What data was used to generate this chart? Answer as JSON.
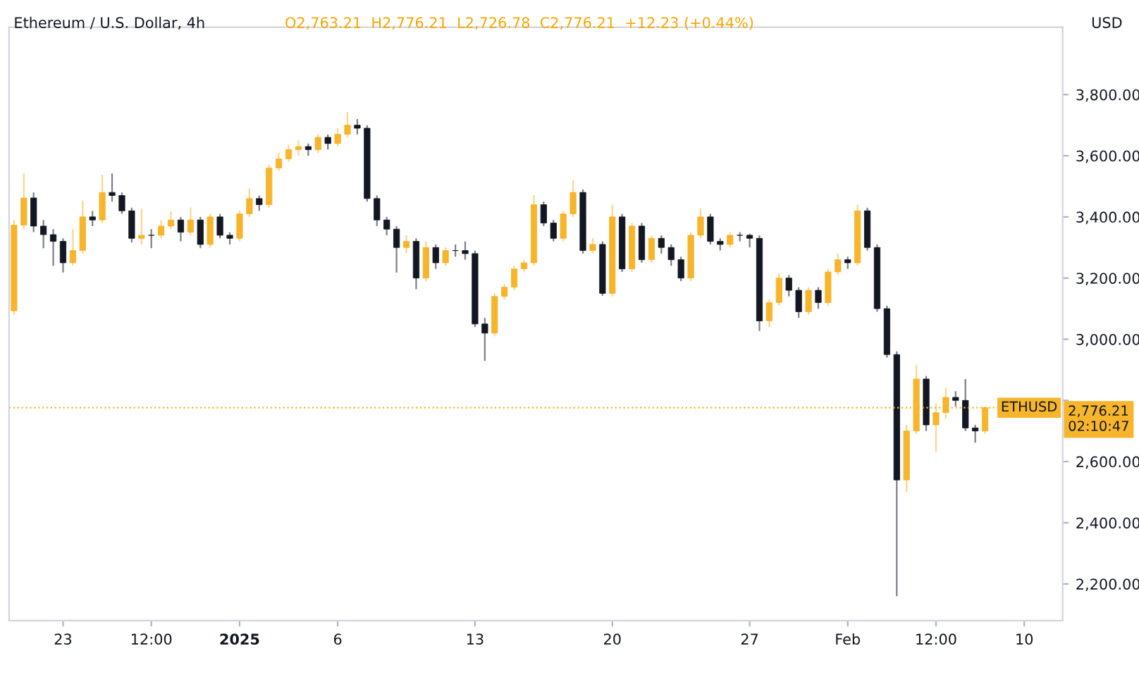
{
  "chart_data": {
    "type": "candlestick",
    "title": "Ethereum / U.S. Dollar, 4h",
    "subtitle": "O2,763.21  H2,776.21  L2,726.78  C2,776.21  +12.23 (+0.44%)",
    "ylabel": "USD",
    "x": [
      "2024-12-20T12:00",
      "2024-12-21T00:00",
      "2024-12-21T12:00",
      "2024-12-22T00:00",
      "2024-12-22T12:00",
      "2024-12-23T00:00",
      "2024-12-23T12:00",
      "2024-12-24T00:00",
      "2024-12-24T12:00",
      "2024-12-25T00:00",
      "2024-12-25T12:00",
      "2024-12-26T00:00",
      "2024-12-26T12:00",
      "2024-12-27T00:00",
      "2024-12-27T12:00",
      "2024-12-28T00:00",
      "2024-12-28T12:00",
      "2024-12-29T00:00",
      "2024-12-29T12:00",
      "2024-12-30T00:00",
      "2024-12-30T12:00",
      "2024-12-31T00:00",
      "2024-12-31T12:00",
      "2025-01-01T00:00",
      "2025-01-01T12:00",
      "2025-01-02T00:00",
      "2025-01-02T12:00",
      "2025-01-03T00:00",
      "2025-01-03T12:00",
      "2025-01-04T00:00",
      "2025-01-04T12:00",
      "2025-01-05T00:00",
      "2025-01-05T12:00",
      "2025-01-06T00:00",
      "2025-01-06T12:00",
      "2025-01-07T00:00",
      "2025-01-07T12:00",
      "2025-01-08T00:00",
      "2025-01-08T12:00",
      "2025-01-09T00:00",
      "2025-01-09T12:00",
      "2025-01-10T00:00",
      "2025-01-10T12:00",
      "2025-01-11T00:00",
      "2025-01-11T12:00",
      "2025-01-12T00:00",
      "2025-01-12T12:00",
      "2025-01-13T00:00",
      "2025-01-13T12:00",
      "2025-01-14T00:00",
      "2025-01-14T12:00",
      "2025-01-15T00:00",
      "2025-01-15T12:00",
      "2025-01-16T00:00",
      "2025-01-16T12:00",
      "2025-01-17T00:00",
      "2025-01-17T12:00",
      "2025-01-18T00:00",
      "2025-01-18T12:00",
      "2025-01-19T00:00",
      "2025-01-19T12:00",
      "2025-01-20T00:00",
      "2025-01-20T12:00",
      "2025-01-21T00:00",
      "2025-01-21T12:00",
      "2025-01-22T00:00",
      "2025-01-22T12:00",
      "2025-01-23T00:00",
      "2025-01-23T12:00",
      "2025-01-24T00:00",
      "2025-01-24T12:00",
      "2025-01-25T00:00",
      "2025-01-25T12:00",
      "2025-01-26T00:00",
      "2025-01-26T12:00",
      "2025-01-27T00:00",
      "2025-01-27T12:00",
      "2025-01-28T00:00",
      "2025-01-28T12:00",
      "2025-01-29T00:00",
      "2025-01-29T12:00",
      "2025-01-30T00:00",
      "2025-01-30T12:00",
      "2025-01-31T00:00",
      "2025-01-31T12:00",
      "2025-02-01T00:00",
      "2025-02-01T12:00",
      "2025-02-02T00:00",
      "2025-02-02T12:00",
      "2025-02-03T00:00",
      "2025-02-03T12:00",
      "2025-02-04T00:00",
      "2025-02-04T12:00",
      "2025-02-05T00:00",
      "2025-02-05T12:00",
      "2025-02-06T00:00",
      "2025-02-06T12:00",
      "2025-02-07T00:00",
      "2025-02-07T12:00",
      "2025-02-08T00:00"
    ],
    "ohlc": [
      [
        3093,
        3390,
        3080,
        3373
      ],
      [
        3373,
        3542,
        3360,
        3462
      ],
      [
        3462,
        3480,
        3350,
        3370
      ],
      [
        3370,
        3390,
        3298,
        3342
      ],
      [
        3342,
        3360,
        3240,
        3320
      ],
      [
        3320,
        3330,
        3218,
        3250
      ],
      [
        3250,
        3360,
        3240,
        3290
      ],
      [
        3290,
        3453,
        3280,
        3400
      ],
      [
        3400,
        3420,
        3370,
        3390
      ],
      [
        3390,
        3538,
        3380,
        3480
      ],
      [
        3480,
        3542,
        3450,
        3470
      ],
      [
        3470,
        3480,
        3410,
        3420
      ],
      [
        3420,
        3430,
        3316,
        3330
      ],
      [
        3330,
        3427,
        3310,
        3340
      ],
      [
        3340,
        3360,
        3298,
        3340
      ],
      [
        3340,
        3390,
        3330,
        3370
      ],
      [
        3370,
        3418,
        3360,
        3390
      ],
      [
        3390,
        3400,
        3320,
        3350
      ],
      [
        3350,
        3431,
        3340,
        3390
      ],
      [
        3390,
        3400,
        3298,
        3310
      ],
      [
        3310,
        3410,
        3300,
        3400
      ],
      [
        3400,
        3410,
        3330,
        3340
      ],
      [
        3340,
        3350,
        3310,
        3330
      ],
      [
        3330,
        3420,
        3320,
        3410
      ],
      [
        3410,
        3493,
        3400,
        3460
      ],
      [
        3460,
        3470,
        3420,
        3440
      ],
      [
        3440,
        3570,
        3430,
        3560
      ],
      [
        3560,
        3610,
        3550,
        3590
      ],
      [
        3590,
        3635,
        3580,
        3620
      ],
      [
        3620,
        3650,
        3600,
        3630
      ],
      [
        3630,
        3640,
        3600,
        3620
      ],
      [
        3620,
        3670,
        3610,
        3660
      ],
      [
        3660,
        3670,
        3620,
        3640
      ],
      [
        3640,
        3690,
        3630,
        3670
      ],
      [
        3670,
        3742,
        3660,
        3700
      ],
      [
        3700,
        3720,
        3670,
        3690
      ],
      [
        3690,
        3700,
        3450,
        3460
      ],
      [
        3460,
        3470,
        3370,
        3390
      ],
      [
        3390,
        3400,
        3340,
        3360
      ],
      [
        3360,
        3370,
        3218,
        3300
      ],
      [
        3300,
        3340,
        3280,
        3320
      ],
      [
        3320,
        3330,
        3164,
        3200
      ],
      [
        3200,
        3320,
        3190,
        3300
      ],
      [
        3300,
        3310,
        3230,
        3250
      ],
      [
        3250,
        3300,
        3240,
        3290
      ],
      [
        3290,
        3310,
        3270,
        3290
      ],
      [
        3290,
        3320,
        3260,
        3280
      ],
      [
        3280,
        3290,
        3040,
        3050
      ],
      [
        3050,
        3070,
        2929,
        3020
      ],
      [
        3020,
        3150,
        3010,
        3140
      ],
      [
        3140,
        3180,
        3130,
        3170
      ],
      [
        3170,
        3240,
        3160,
        3230
      ],
      [
        3230,
        3260,
        3220,
        3250
      ],
      [
        3250,
        3471,
        3240,
        3440
      ],
      [
        3440,
        3450,
        3370,
        3380
      ],
      [
        3380,
        3390,
        3320,
        3330
      ],
      [
        3330,
        3420,
        3320,
        3410
      ],
      [
        3410,
        3520,
        3400,
        3480
      ],
      [
        3480,
        3490,
        3280,
        3290
      ],
      [
        3290,
        3330,
        3280,
        3310
      ],
      [
        3310,
        3320,
        3142,
        3150
      ],
      [
        3150,
        3440,
        3140,
        3400
      ],
      [
        3400,
        3410,
        3220,
        3230
      ],
      [
        3230,
        3380,
        3220,
        3370
      ],
      [
        3370,
        3380,
        3250,
        3260
      ],
      [
        3260,
        3340,
        3250,
        3330
      ],
      [
        3330,
        3340,
        3280,
        3300
      ],
      [
        3300,
        3310,
        3240,
        3260
      ],
      [
        3260,
        3270,
        3190,
        3200
      ],
      [
        3200,
        3350,
        3190,
        3340
      ],
      [
        3340,
        3427,
        3330,
        3400
      ],
      [
        3400,
        3410,
        3310,
        3320
      ],
      [
        3320,
        3330,
        3290,
        3310
      ],
      [
        3310,
        3350,
        3300,
        3340
      ],
      [
        3340,
        3350,
        3320,
        3340
      ],
      [
        3340,
        3345,
        3300,
        3330
      ],
      [
        3330,
        3340,
        3027,
        3060
      ],
      [
        3060,
        3130,
        3040,
        3120
      ],
      [
        3120,
        3215,
        3110,
        3200
      ],
      [
        3200,
        3210,
        3140,
        3160
      ],
      [
        3160,
        3170,
        3070,
        3090
      ],
      [
        3090,
        3170,
        3080,
        3160
      ],
      [
        3160,
        3170,
        3100,
        3120
      ],
      [
        3120,
        3230,
        3110,
        3220
      ],
      [
        3220,
        3280,
        3210,
        3260
      ],
      [
        3260,
        3270,
        3230,
        3250
      ],
      [
        3250,
        3440,
        3240,
        3420
      ],
      [
        3420,
        3430,
        3290,
        3300
      ],
      [
        3300,
        3310,
        3090,
        3100
      ],
      [
        3100,
        3110,
        2940,
        2950
      ],
      [
        2950,
        2960,
        2160,
        2540
      ],
      [
        2540,
        2720,
        2500,
        2700
      ],
      [
        2700,
        2916,
        2690,
        2870
      ],
      [
        2870,
        2880,
        2700,
        2720
      ],
      [
        2720,
        2790,
        2631,
        2760
      ],
      [
        2760,
        2840,
        2740,
        2810
      ],
      [
        2810,
        2830,
        2780,
        2800
      ],
      [
        2800,
        2870,
        2700,
        2710
      ],
      [
        2710,
        2720,
        2662,
        2700
      ],
      [
        2700,
        2780,
        2690,
        2776.21
      ]
    ],
    "colors": [
      "#f7b52c",
      "#f7b52c",
      "#131722",
      "#131722",
      "#131722",
      "#131722",
      "#f7b52c",
      "#f7b52c",
      "#131722",
      "#f7b52c",
      "#131722",
      "#131722",
      "#131722",
      "#f7b52c",
      "#131722",
      "#f7b52c",
      "#f7b52c",
      "#131722",
      "#f7b52c",
      "#131722",
      "#f7b52c",
      "#131722",
      "#131722",
      "#f7b52c",
      "#f7b52c",
      "#131722",
      "#f7b52c",
      "#f7b52c",
      "#f7b52c",
      "#f7b52c",
      "#131722",
      "#f7b52c",
      "#131722",
      "#f7b52c",
      "#f7b52c",
      "#131722",
      "#131722",
      "#131722",
      "#131722",
      "#131722",
      "#f7b52c",
      "#131722",
      "#f7b52c",
      "#131722",
      "#f7b52c",
      "#131722",
      "#131722",
      "#131722",
      "#131722",
      "#f7b52c",
      "#f7b52c",
      "#f7b52c",
      "#f7b52c",
      "#f7b52c",
      "#131722",
      "#131722",
      "#f7b52c",
      "#f7b52c",
      "#131722",
      "#f7b52c",
      "#131722",
      "#f7b52c",
      "#131722",
      "#f7b52c",
      "#131722",
      "#f7b52c",
      "#131722",
      "#131722",
      "#131722",
      "#f7b52c",
      "#f7b52c",
      "#131722",
      "#131722",
      "#f7b52c",
      "#131722",
      "#131722",
      "#131722",
      "#f7b52c",
      "#f7b52c",
      "#131722",
      "#131722",
      "#f7b52c",
      "#131722",
      "#f7b52c",
      "#f7b52c",
      "#131722",
      "#f7b52c",
      "#131722",
      "#131722",
      "#131722",
      "#131722",
      "#f7b52c",
      "#f7b52c",
      "#131722",
      "#f7b52c",
      "#f7b52c",
      "#131722",
      "#131722",
      "#131722",
      "#f7b52c"
    ],
    "xlim": [
      "2024-12-20T06:00",
      "2025-02-11T23:00"
    ],
    "xticks": [
      {
        "value": "2024-12-23",
        "label": "23"
      },
      {
        "value": "2024-12-27T12:00",
        "label": "12:00"
      },
      {
        "value": "2025-01-01",
        "label": "2025"
      },
      {
        "value": "2025-01-06",
        "label": "6"
      },
      {
        "value": "2025-01-13",
        "label": "13"
      },
      {
        "value": "2025-01-20",
        "label": "20"
      },
      {
        "value": "2025-01-27",
        "label": "27"
      },
      {
        "value": "2025-02-01",
        "label": "Feb"
      },
      {
        "value": "2025-02-05T12:00",
        "label": "12:00"
      },
      {
        "value": "2025-02-10",
        "label": "10"
      }
    ],
    "ylim": [
      2080,
      4020
    ],
    "yticks": [
      {
        "value": 2200,
        "label": "2,200.00"
      },
      {
        "value": 2400,
        "label": "2,400.00"
      },
      {
        "value": 2600,
        "label": "2,600.00"
      },
      {
        "value": 2800,
        "label": null
      },
      {
        "value": 3000,
        "label": "3,000.00"
      },
      {
        "value": 3200,
        "label": "3,200.00"
      },
      {
        "value": 3400,
        "label": "3,400.00"
      },
      {
        "value": 3600,
        "label": "3,600.00"
      },
      {
        "value": 3800,
        "label": "3,800.00"
      }
    ],
    "ref_lines": [
      {
        "axis": "y",
        "value": 2776.21,
        "label": "ETHUSD",
        "color": "#f7b52c",
        "line_style": "dotted"
      }
    ],
    "annotations": [
      "2,776.21",
      "02:10:47"
    ],
    "grid": false
  }
}
